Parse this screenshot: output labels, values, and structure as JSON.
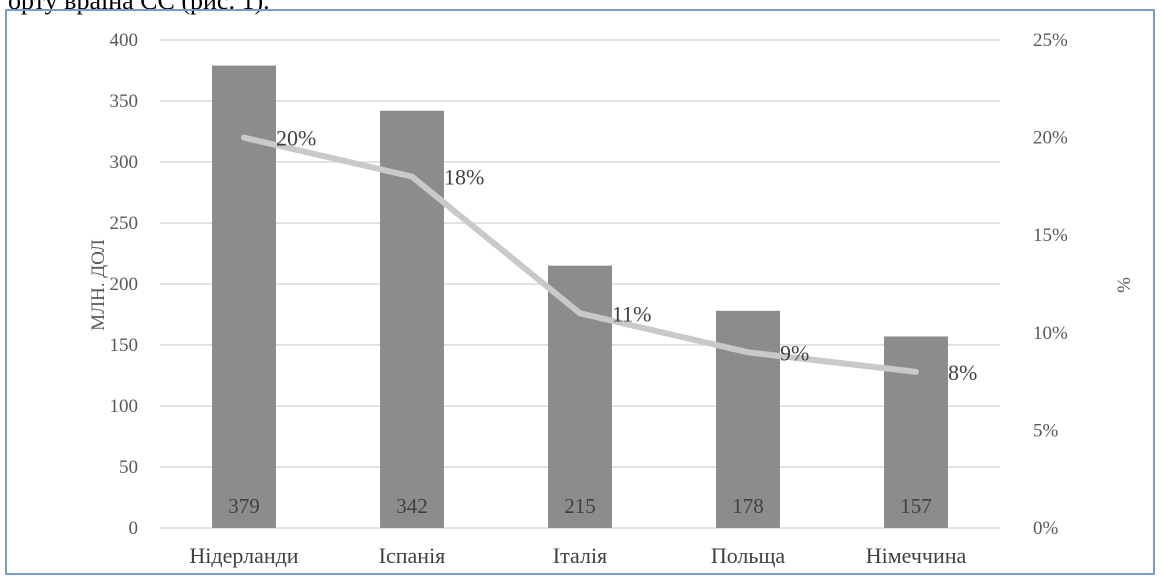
{
  "page": {
    "cut_text": "орту враїна СС (рис. 1)."
  },
  "chart_data": {
    "type": "bar",
    "categories": [
      "Нідерланди",
      "Іспанія",
      "Італія",
      "Польща",
      "Німеччина"
    ],
    "series": [
      {
        "values": [
          379,
          342,
          215,
          178,
          157
        ],
        "color": "#8c8c8c",
        "axis": "left"
      },
      {
        "values": [
          20,
          18,
          11,
          9,
          8
        ],
        "color": "#c9c9c9",
        "axis": "right",
        "kind": "line"
      }
    ],
    "value_labels": [
      "379",
      "342",
      "215",
      "178",
      "157"
    ],
    "percent_labels": [
      "20%",
      "18%",
      "11%",
      "9%",
      "8%"
    ],
    "ylabel": "МЛН. ДОЛ",
    "y2label": "%",
    "ylim": [
      0,
      400
    ],
    "y2lim": [
      0,
      25
    ],
    "yticks": [
      "0",
      "50",
      "100",
      "150",
      "200",
      "250",
      "300",
      "350",
      "400"
    ],
    "y2ticks": [
      "0%",
      "5%",
      "10%",
      "15%",
      "20%",
      "25%"
    ],
    "grid": true,
    "gridColor": "#d9d9d9"
  }
}
